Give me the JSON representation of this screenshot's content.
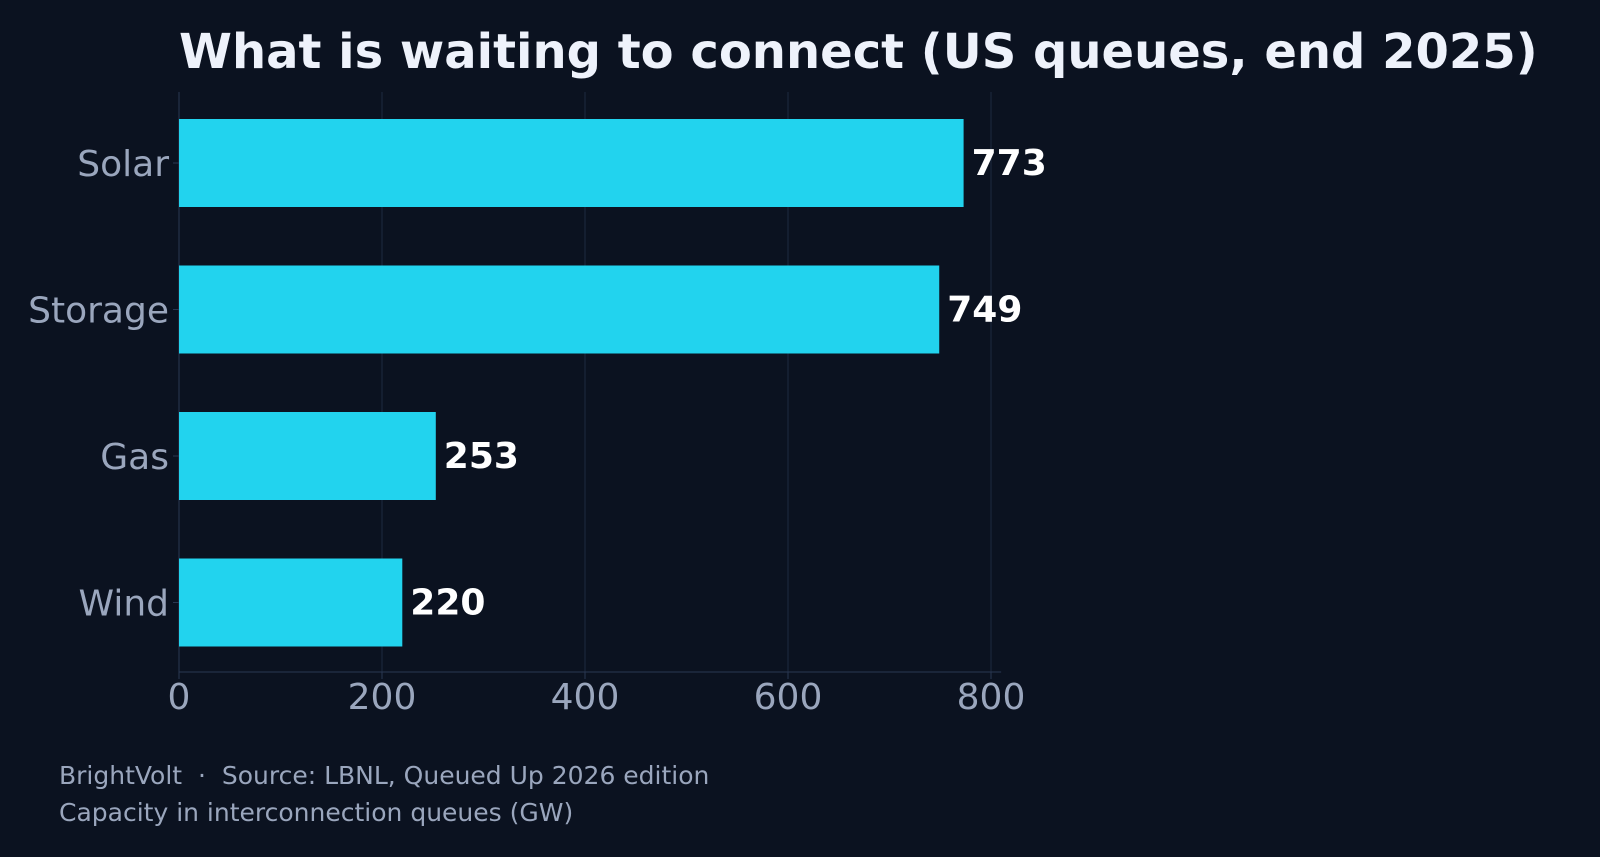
{
  "colors": {
    "background": "#0b1220",
    "bar": "#22d3ee",
    "grid": "#1e2a40",
    "axis": "#2a3852",
    "label": "#9aa6bd",
    "title": "#eef2fb",
    "value_label": "#ffffff"
  },
  "footer": {
    "source_line": "BrightVolt  ·  Source: LBNL, Queued Up 2026 edition",
    "note_line": "Capacity in interconnection queues (GW)"
  },
  "chart_data": {
    "type": "bar",
    "orientation": "horizontal",
    "title": "What is waiting to connect (US queues, end 2025)",
    "categories": [
      "Solar",
      "Storage",
      "Gas",
      "Wind"
    ],
    "values": [
      773,
      749,
      253,
      220
    ],
    "value_labels": [
      "773",
      "749",
      "253",
      "220"
    ],
    "xlim": [
      0,
      810
    ],
    "xticks": [
      0,
      200,
      400,
      600,
      800
    ],
    "xtick_labels": [
      "0",
      "200",
      "400",
      "600",
      "800"
    ],
    "grid": true,
    "legend": "none"
  }
}
